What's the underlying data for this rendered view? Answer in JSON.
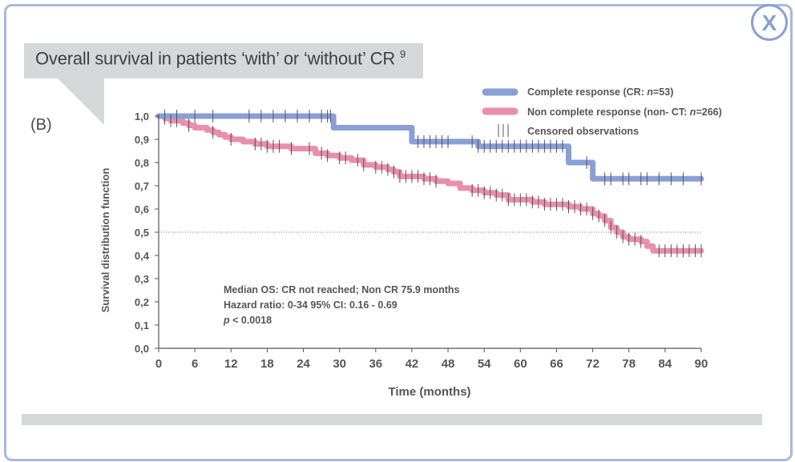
{
  "header": {
    "title": "Overall survival in patients ‘with’ or ‘without’ CR",
    "title_ref": "9",
    "panel_label": "(B)"
  },
  "close_button": {
    "label": "X"
  },
  "colors": {
    "cr": "#8a9fd6",
    "non_cr": "#ea8ead",
    "censor": "#555555",
    "frame": "#a9b8dd",
    "callout": "#d6d7d8"
  },
  "chart_data": {
    "type": "line",
    "title": "",
    "xlabel": "Time (months)",
    "ylabel": "Survival distribution function",
    "xlim": [
      0,
      90
    ],
    "ylim": [
      0,
      1
    ],
    "x_ticks": [
      "0",
      "6",
      "12",
      "18",
      "24",
      "30",
      "36",
      "42",
      "48",
      "54",
      "60",
      "66",
      "72",
      "78",
      "84",
      "90"
    ],
    "y_ticks": [
      "0,0",
      "0,1",
      "0,2",
      "0,3",
      "0,4",
      "0,5",
      "0,6",
      "0,7",
      "0,8",
      "0,9",
      "1,0"
    ],
    "reference_line_y": 0.5,
    "legend": {
      "placement": "top-right",
      "entries": [
        {
          "series": "cr",
          "text": "Complete response (CR: ",
          "n_label": "n",
          "suffix": "=53)"
        },
        {
          "series": "non_cr",
          "text": "Non complete response (non- CT: ",
          "n_label": "n",
          "suffix": "=266)"
        },
        {
          "series": "censor",
          "text": "Censored observations"
        }
      ]
    },
    "annotations": {
      "line1": "Median OS: CR not reached; Non CR 75.9 months",
      "line2": "Hazard ratio: 0-34 95% CI: 0.16 - 0.69",
      "p_label": "p",
      "p_value": " < 0.0018"
    },
    "series": [
      {
        "id": "cr",
        "x": [
          0,
          28,
          29,
          41,
          42,
          52,
          53,
          67,
          68,
          71,
          72,
          90
        ],
        "y": [
          1.0,
          1.0,
          0.95,
          0.95,
          0.89,
          0.89,
          0.87,
          0.87,
          0.8,
          0.8,
          0.73,
          0.73
        ],
        "censored_x": [
          1,
          3,
          6,
          9,
          15,
          17,
          19,
          21,
          23,
          25,
          27,
          28,
          28.5,
          43,
          44,
          45,
          46,
          47,
          48,
          52,
          53,
          54,
          55,
          56,
          57,
          58,
          59,
          60,
          61,
          62,
          63,
          64,
          65,
          66,
          67,
          71,
          74,
          75,
          77,
          78,
          80,
          81,
          83,
          85,
          87,
          90
        ]
      },
      {
        "id": "non_cr",
        "x": [
          0,
          1,
          2,
          3,
          4,
          5,
          6,
          7,
          8,
          9,
          10,
          11,
          12,
          14,
          16,
          18,
          20,
          22,
          24,
          26,
          28,
          30,
          32,
          34,
          36,
          38,
          39,
          40,
          42,
          44,
          46,
          48,
          50,
          52,
          54,
          56,
          58,
          60,
          62,
          64,
          66,
          68,
          70,
          72,
          73,
          74,
          75,
          76,
          77,
          78,
          80,
          81,
          82,
          84,
          90
        ],
        "y": [
          1.0,
          0.99,
          0.98,
          0.98,
          0.97,
          0.96,
          0.95,
          0.95,
          0.94,
          0.93,
          0.92,
          0.91,
          0.9,
          0.89,
          0.88,
          0.87,
          0.87,
          0.86,
          0.86,
          0.84,
          0.83,
          0.82,
          0.81,
          0.79,
          0.78,
          0.77,
          0.76,
          0.74,
          0.74,
          0.73,
          0.72,
          0.71,
          0.69,
          0.68,
          0.67,
          0.66,
          0.64,
          0.64,
          0.63,
          0.62,
          0.62,
          0.61,
          0.6,
          0.58,
          0.57,
          0.55,
          0.52,
          0.5,
          0.48,
          0.47,
          0.46,
          0.44,
          0.42,
          0.42,
          0.42
        ],
        "censored_x": [
          1,
          2,
          3,
          5,
          9,
          12,
          16,
          17,
          18,
          19,
          20,
          22,
          25,
          27,
          28,
          30,
          31,
          33,
          34,
          36,
          37,
          38,
          39,
          40,
          41,
          42,
          43,
          44,
          45,
          46,
          52,
          53,
          54,
          55,
          56,
          57,
          58,
          59,
          60,
          61,
          62,
          63,
          64,
          65,
          66,
          67,
          68,
          69,
          70,
          71,
          72,
          73,
          74,
          75,
          76,
          77,
          78,
          79,
          80,
          83,
          84,
          85,
          86,
          87,
          88,
          89,
          90
        ]
      }
    ]
  }
}
